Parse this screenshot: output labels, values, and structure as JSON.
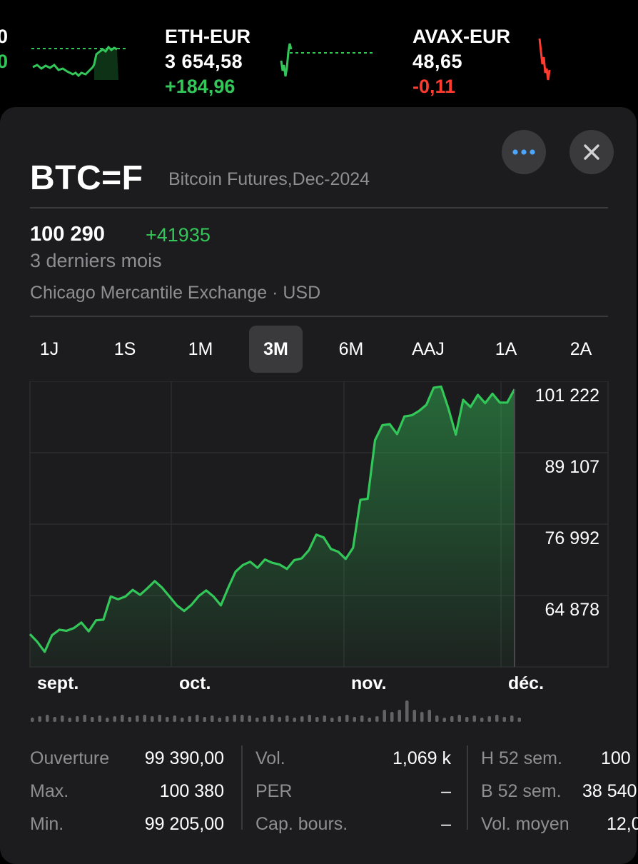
{
  "ticker": {
    "partial_left": {
      "line1": "0",
      "line2": "0"
    },
    "items": [
      {
        "symbol": "ETH-EUR",
        "price": "3 654,58",
        "change": "+184,96",
        "direction": "up"
      },
      {
        "symbol": "AVAX-EUR",
        "price": "48,65",
        "change": "-0,11",
        "direction": "down"
      }
    ]
  },
  "header": {
    "symbol": "BTC=F",
    "name": "Bitcoin Futures,Dec-2024",
    "more_icon": "ellipsis-icon",
    "close_icon": "close-icon"
  },
  "quote": {
    "price": "100 290",
    "change": "+41935",
    "period": "3 derniers mois",
    "exchange": "Chicago Mercantile Exchange · USD"
  },
  "ranges": [
    "1J",
    "1S",
    "1M",
    "3M",
    "6M",
    "AAJ",
    "1A",
    "2A"
  ],
  "active_range": "3M",
  "colors": {
    "up": "#33c759",
    "down": "#ff3b30",
    "card": "#1c1c1e",
    "muted": "#8e8e93"
  },
  "chart_data": {
    "type": "area",
    "y_ticks": [
      "101 222",
      "89 107",
      "76 992",
      "64 878"
    ],
    "y_tick_values": [
      101222,
      89107,
      76992,
      64878
    ],
    "x_ticks": [
      "sept.",
      "oct.",
      "nov.",
      "déc."
    ],
    "ylim": [
      52763,
      101222
    ],
    "grid": true,
    "series": [
      {
        "values": [
          58700,
          57300,
          55500,
          58500,
          59500,
          59300,
          59800,
          60800,
          59200,
          61200,
          61300,
          65500,
          65000,
          65500,
          66700,
          65800,
          67000,
          68300,
          67100,
          65500,
          63900,
          62900,
          64000,
          65600,
          66600,
          65500,
          63900,
          67100,
          70000,
          71200,
          71800,
          70700,
          72200,
          71600,
          71300,
          70500,
          72100,
          72400,
          73900,
          76700,
          76200,
          74100,
          73600,
          72300,
          74300,
          83000,
          83200,
          93800,
          96500,
          96700,
          94900,
          98100,
          98300,
          99100,
          100200,
          103300,
          103500,
          99500,
          94800,
          101100,
          99800,
          102000,
          100500,
          102200,
          100600,
          100600,
          103000
        ]
      }
    ]
  },
  "stats": {
    "col1": [
      {
        "label": "Ouverture",
        "value": "99 390,00"
      },
      {
        "label": "Max.",
        "value": "100 380"
      },
      {
        "label": "Min.",
        "value": "99 205,00"
      }
    ],
    "col2": [
      {
        "label": "Vol.",
        "value": "1,069 k"
      },
      {
        "label": "PER",
        "value": "–"
      },
      {
        "label": "Cap. bours.",
        "value": "–"
      }
    ],
    "col3": [
      {
        "label": "H 52 sem.",
        "value": "100"
      },
      {
        "label": "B 52 sem.",
        "value": "38 540"
      },
      {
        "label": "Vol. moyen",
        "value": "12,0"
      }
    ]
  }
}
